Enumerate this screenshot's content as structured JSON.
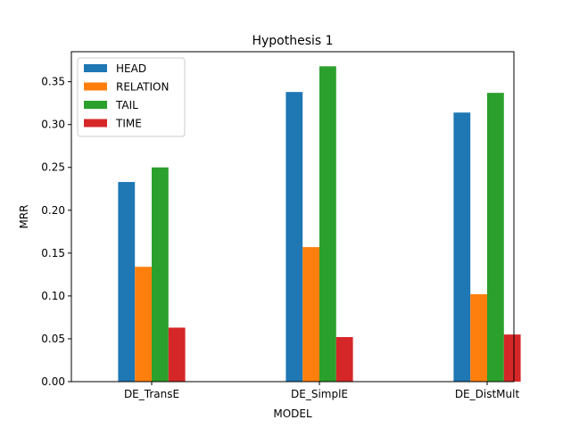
{
  "chart_data": {
    "type": "bar",
    "title": "Hypothesis 1",
    "xlabel": "MODEL",
    "ylabel": "MRR",
    "categories": [
      "DE_TransE",
      "DE_SimplE",
      "DE_DistMult"
    ],
    "series": [
      {
        "name": "HEAD",
        "color": "#1f77b4",
        "values": [
          0.233,
          0.338,
          0.314
        ]
      },
      {
        "name": "RELATION",
        "color": "#ff7f0e",
        "values": [
          0.134,
          0.157,
          0.102
        ]
      },
      {
        "name": "TAIL",
        "color": "#2ca02c",
        "values": [
          0.25,
          0.368,
          0.337
        ]
      },
      {
        "name": "TIME",
        "color": "#d62728",
        "values": [
          0.063,
          0.052,
          0.055
        ]
      }
    ],
    "ylim": [
      0,
      0.385
    ],
    "yticks": [
      "0.00",
      "0.05",
      "0.10",
      "0.15",
      "0.20",
      "0.25",
      "0.30",
      "0.35"
    ],
    "grid": false,
    "legend_position": "top-left"
  }
}
